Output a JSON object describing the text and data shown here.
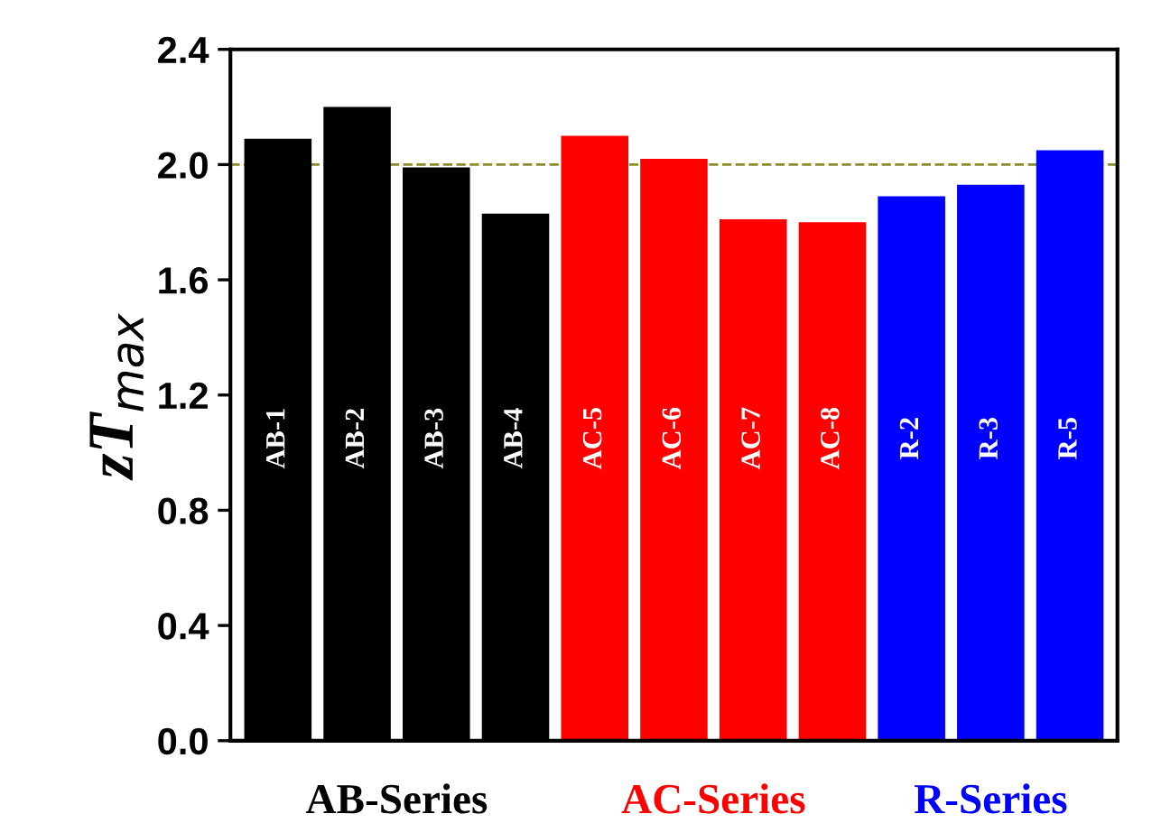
{
  "chart_data": {
    "type": "bar",
    "ylabel": "zT$_{max}$",
    "categories": [
      "AB-1",
      "AB-2",
      "AB-3",
      "AB-4",
      "AC-5",
      "AC-6",
      "AC-7",
      "AC-8",
      "R-2",
      "R-3",
      "R-5"
    ],
    "series": [
      {
        "name": "AB-Series",
        "color": "#000000",
        "values": [
          2.09,
          2.2,
          1.99,
          1.83,
          null,
          null,
          null,
          null,
          null,
          null,
          null
        ]
      },
      {
        "name": "AC-Series",
        "color": "#ff0000",
        "values": [
          null,
          null,
          null,
          null,
          2.1,
          2.02,
          1.81,
          1.8,
          null,
          null,
          null
        ]
      },
      {
        "name": "R-Series",
        "color": "#0000ff",
        "values": [
          null,
          null,
          null,
          null,
          null,
          null,
          null,
          null,
          1.89,
          1.93,
          2.05
        ]
      }
    ],
    "ylim": [
      0,
      2.4
    ],
    "yticks": [
      {
        "value": 0,
        "label": "0.0"
      },
      0.4,
      0.8,
      1.2,
      1.6,
      {
        "value": 2,
        "label": "2.0"
      },
      2.4
    ],
    "ref_lines": [
      {
        "axis": "y",
        "value": 2.0,
        "color": "#8b8b2a",
        "line_style": "dashed"
      }
    ],
    "grid": false,
    "legend": false
  }
}
